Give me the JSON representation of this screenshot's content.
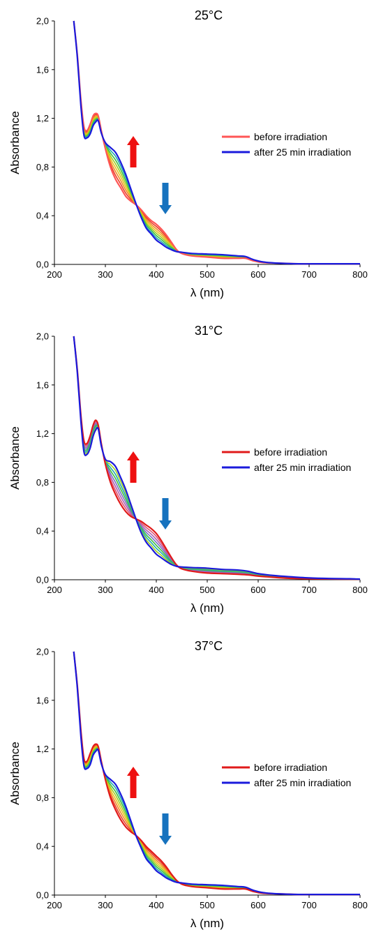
{
  "chart_data": [
    {
      "type": "line",
      "title": "25°C",
      "xlabel": "λ (nm)",
      "ylabel": "Absorbance",
      "xlim": [
        200,
        800
      ],
      "ylim": [
        0,
        2
      ],
      "xticks": [
        "200",
        "300",
        "400",
        "500",
        "600",
        "700",
        "800"
      ],
      "yticks": [
        "0,0",
        "0,4",
        "0,8",
        "1,2",
        "1,6",
        "2,0"
      ],
      "grid": false,
      "legend_position": "right",
      "colors": {
        "before": "#ff5555",
        "after": "#1a1adc",
        "intermediate": [
          "#e8402a",
          "#f08a24",
          "#e8c020",
          "#9fd020",
          "#3ec040",
          "#20a8b0"
        ],
        "arrow_up": "#ee1111",
        "arrow_down": "#1672be"
      },
      "series": [
        {
          "name": "before irradiation",
          "x": [
            238,
            245,
            252,
            258,
            264,
            270,
            276,
            281,
            286,
            292,
            300,
            310,
            320,
            330,
            340,
            350,
            360,
            370,
            380,
            390,
            400,
            410,
            420,
            430,
            440,
            450,
            470,
            500,
            530,
            560,
            575,
            590,
            610,
            640,
            680,
            720,
            760,
            800
          ],
          "y": [
            2.0,
            1.72,
            1.35,
            1.13,
            1.1,
            1.15,
            1.22,
            1.24,
            1.22,
            1.1,
            0.95,
            0.8,
            0.7,
            0.63,
            0.56,
            0.52,
            0.49,
            0.45,
            0.4,
            0.36,
            0.33,
            0.29,
            0.24,
            0.18,
            0.12,
            0.09,
            0.07,
            0.06,
            0.05,
            0.05,
            0.05,
            0.03,
            0.015,
            0.01,
            0.005,
            0.005,
            0.005,
            0.005
          ]
        },
        {
          "name": "after 25 min irradiation",
          "x": [
            238,
            245,
            252,
            258,
            264,
            270,
            276,
            281,
            286,
            292,
            300,
            310,
            320,
            330,
            340,
            350,
            360,
            370,
            380,
            390,
            400,
            410,
            420,
            430,
            440,
            450,
            470,
            500,
            530,
            560,
            575,
            590,
            610,
            640,
            680,
            720,
            760,
            800
          ],
          "y": [
            2.0,
            1.7,
            1.3,
            1.06,
            1.04,
            1.07,
            1.14,
            1.17,
            1.18,
            1.08,
            1.0,
            0.96,
            0.92,
            0.84,
            0.74,
            0.62,
            0.5,
            0.39,
            0.3,
            0.25,
            0.2,
            0.17,
            0.14,
            0.12,
            0.105,
            0.1,
            0.09,
            0.085,
            0.08,
            0.07,
            0.065,
            0.04,
            0.02,
            0.01,
            0.005,
            0.005,
            0.005,
            0.005
          ]
        }
      ]
    },
    {
      "type": "line",
      "title": "31°C",
      "xlabel": "λ (nm)",
      "ylabel": "Absorbance",
      "xlim": [
        200,
        800
      ],
      "ylim": [
        0,
        2
      ],
      "xticks": [
        "200",
        "300",
        "400",
        "500",
        "600",
        "700",
        "800"
      ],
      "yticks": [
        "0,0",
        "0,4",
        "0,8",
        "1,2",
        "1,6",
        "2,0"
      ],
      "grid": false,
      "legend_position": "right",
      "colors": {
        "before": "#e01a1a",
        "after": "#1a1adc",
        "intermediate": [
          "#e05070",
          "#b060b0",
          "#7a70c8",
          "#3ec040",
          "#20a8b0",
          "#9fd020"
        ],
        "arrow_up": "#ee1111",
        "arrow_down": "#1672be"
      },
      "series": [
        {
          "name": "before irradiation",
          "x": [
            238,
            245,
            252,
            258,
            264,
            270,
            276,
            281,
            286,
            292,
            300,
            310,
            320,
            330,
            340,
            350,
            360,
            370,
            380,
            390,
            400,
            410,
            420,
            430,
            440,
            450,
            470,
            500,
            530,
            560,
            580,
            600,
            630,
            660,
            700,
            740,
            780,
            800
          ],
          "y": [
            2.0,
            1.72,
            1.35,
            1.14,
            1.12,
            1.18,
            1.27,
            1.31,
            1.27,
            1.12,
            0.95,
            0.8,
            0.7,
            0.62,
            0.56,
            0.52,
            0.5,
            0.48,
            0.45,
            0.42,
            0.38,
            0.32,
            0.25,
            0.18,
            0.12,
            0.09,
            0.07,
            0.055,
            0.05,
            0.045,
            0.04,
            0.03,
            0.02,
            0.012,
            0.008,
            0.006,
            0.005,
            0.005
          ]
        },
        {
          "name": "after 25 min irradiation",
          "x": [
            238,
            245,
            252,
            258,
            264,
            270,
            276,
            281,
            286,
            292,
            300,
            310,
            320,
            330,
            340,
            350,
            360,
            370,
            380,
            390,
            400,
            410,
            420,
            430,
            440,
            450,
            470,
            500,
            530,
            560,
            580,
            600,
            630,
            660,
            700,
            740,
            780,
            800
          ],
          "y": [
            2.0,
            1.7,
            1.3,
            1.05,
            1.03,
            1.08,
            1.18,
            1.23,
            1.24,
            1.1,
            0.99,
            0.97,
            0.93,
            0.84,
            0.74,
            0.62,
            0.5,
            0.39,
            0.31,
            0.26,
            0.21,
            0.18,
            0.15,
            0.125,
            0.11,
            0.105,
            0.1,
            0.095,
            0.085,
            0.08,
            0.07,
            0.05,
            0.035,
            0.025,
            0.015,
            0.01,
            0.008,
            0.005
          ]
        }
      ]
    },
    {
      "type": "line",
      "title": "37°C",
      "xlabel": "λ (nm)",
      "ylabel": "Absorbance",
      "xlim": [
        200,
        800
      ],
      "ylim": [
        0,
        2
      ],
      "xticks": [
        "200",
        "300",
        "400",
        "500",
        "600",
        "700",
        "800"
      ],
      "yticks": [
        "0,0",
        "0,4",
        "0,8",
        "1,2",
        "1,6",
        "2,0"
      ],
      "grid": false,
      "legend_position": "right",
      "colors": {
        "before": "#e01a1a",
        "after": "#1a1adc",
        "intermediate": [
          "#e8402a",
          "#f08a24",
          "#e8c020",
          "#9fd020",
          "#3ec040",
          "#20a8b0"
        ],
        "arrow_up": "#ee1111",
        "arrow_down": "#1672be"
      },
      "series": [
        {
          "name": "before irradiation",
          "x": [
            238,
            245,
            252,
            258,
            264,
            270,
            276,
            281,
            286,
            292,
            300,
            310,
            320,
            330,
            340,
            350,
            360,
            370,
            380,
            390,
            400,
            410,
            420,
            430,
            440,
            450,
            470,
            500,
            530,
            560,
            575,
            590,
            610,
            640,
            680,
            720,
            760,
            800
          ],
          "y": [
            2.0,
            1.72,
            1.35,
            1.12,
            1.1,
            1.16,
            1.22,
            1.24,
            1.22,
            1.1,
            0.95,
            0.8,
            0.7,
            0.62,
            0.56,
            0.52,
            0.49,
            0.45,
            0.4,
            0.36,
            0.32,
            0.28,
            0.23,
            0.17,
            0.12,
            0.09,
            0.07,
            0.06,
            0.05,
            0.05,
            0.05,
            0.03,
            0.015,
            0.01,
            0.005,
            0.005,
            0.005,
            0.005
          ]
        },
        {
          "name": "after 25 min irradiation",
          "x": [
            238,
            245,
            252,
            258,
            264,
            270,
            276,
            281,
            286,
            292,
            300,
            310,
            320,
            330,
            340,
            350,
            360,
            370,
            380,
            390,
            400,
            410,
            420,
            430,
            440,
            450,
            470,
            500,
            530,
            560,
            575,
            590,
            610,
            640,
            680,
            720,
            760,
            800
          ],
          "y": [
            2.0,
            1.7,
            1.3,
            1.06,
            1.04,
            1.07,
            1.15,
            1.18,
            1.19,
            1.08,
            0.99,
            0.95,
            0.91,
            0.83,
            0.73,
            0.61,
            0.49,
            0.39,
            0.3,
            0.25,
            0.2,
            0.17,
            0.14,
            0.12,
            0.105,
            0.1,
            0.09,
            0.085,
            0.08,
            0.07,
            0.065,
            0.04,
            0.02,
            0.01,
            0.005,
            0.005,
            0.005,
            0.005
          ]
        }
      ]
    }
  ]
}
